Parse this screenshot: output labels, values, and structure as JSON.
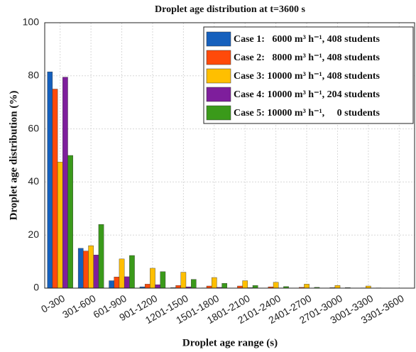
{
  "chart_data": {
    "type": "bar",
    "title": "Droplet  age distribution  at t=3600 s",
    "x_label": "Droplet age range (s)",
    "y_label": "Droplet  age distribution  (%)",
    "categories": [
      "0-300",
      "301-600",
      "601-900",
      "901-1200",
      "1201-1500",
      "1501-1800",
      "1801-2100",
      "2101-2400",
      "2401-2700",
      "2701-3000",
      "3001-3300",
      "3301-3600"
    ],
    "series": [
      {
        "name": "Case 1:   6000 m³ h⁻¹, 408 students",
        "color": "#1560bd",
        "values": [
          81.5,
          15,
          2.8,
          0.5,
          0.2,
          0.1,
          0,
          0,
          0,
          0,
          0,
          0
        ]
      },
      {
        "name": "Case 2:   8000 m³ h⁻¹, 408 students",
        "color": "#ff4a0a",
        "values": [
          75,
          14,
          4.2,
          1.5,
          1.0,
          0.8,
          0.8,
          0.5,
          0.3,
          0.2,
          0.1,
          0
        ]
      },
      {
        "name": "Case 3: 10000 m³ h⁻¹, 408 students",
        "color": "#ffbf00",
        "values": [
          47.5,
          16,
          11,
          7.5,
          6,
          4,
          2.8,
          2.2,
          1.5,
          1.0,
          0.8,
          0
        ]
      },
      {
        "name": "Case 4: 10000 m³ h⁻¹, 204 students",
        "color": "#7e1e9c",
        "values": [
          79.5,
          12.5,
          4.3,
          1.3,
          0.5,
          0.3,
          0.2,
          0.1,
          0,
          0,
          0,
          0
        ]
      },
      {
        "name": "Case 5: 10000 m³ h⁻¹,     0 students",
        "color": "#3a9a1a",
        "values": [
          50,
          24,
          12.3,
          6.2,
          3.3,
          1.8,
          1.0,
          0.6,
          0.3,
          0.2,
          0.1,
          0
        ]
      }
    ],
    "ylim": [
      0,
      100
    ],
    "yticks": [
      0,
      20,
      40,
      60,
      80,
      100
    ],
    "grid": true,
    "legend": "upper right"
  }
}
